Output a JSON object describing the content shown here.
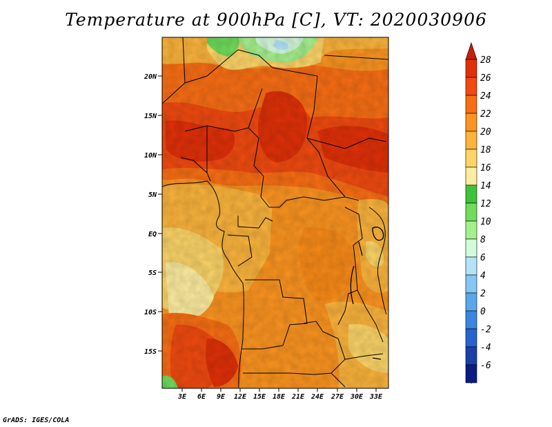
{
  "title": "Temperature at 900hPa [C], VT: 2020030906",
  "footer": "GrADS: IGES/COLA",
  "map": {
    "lat_labels": [
      "20N",
      "15N",
      "10N",
      "5N",
      "EQ",
      "5S",
      "10S",
      "15S"
    ],
    "lon_labels": [
      "3E",
      "6E",
      "9E",
      "12E",
      "15E",
      "18E",
      "21E",
      "24E",
      "27E",
      "30E",
      "33E"
    ],
    "lat_range": [
      -19.5,
      24.5
    ],
    "lon_range": [
      0,
      35
    ]
  },
  "colorbar": {
    "labels": [
      "28",
      "26",
      "24",
      "22",
      "20",
      "18",
      "16",
      "14",
      "12",
      "10",
      "8",
      "6",
      "4",
      "2",
      "0",
      "-2",
      "-4",
      "-6"
    ],
    "colors": [
      "#e03008",
      "#f04a10",
      "#f86e14",
      "#fb9420",
      "#fbb43c",
      "#fcd468",
      "#fdeca0",
      "#3ec23a",
      "#6fdc5c",
      "#a4f08c",
      "#d4fadc",
      "#b4e2f8",
      "#86c6f2",
      "#5aa6ea",
      "#3a86e0",
      "#2664cc",
      "#1a40a8",
      "#0c1c80"
    ],
    "top_color": "#c81e0a",
    "bottom_color": "#d8d8f0"
  }
}
